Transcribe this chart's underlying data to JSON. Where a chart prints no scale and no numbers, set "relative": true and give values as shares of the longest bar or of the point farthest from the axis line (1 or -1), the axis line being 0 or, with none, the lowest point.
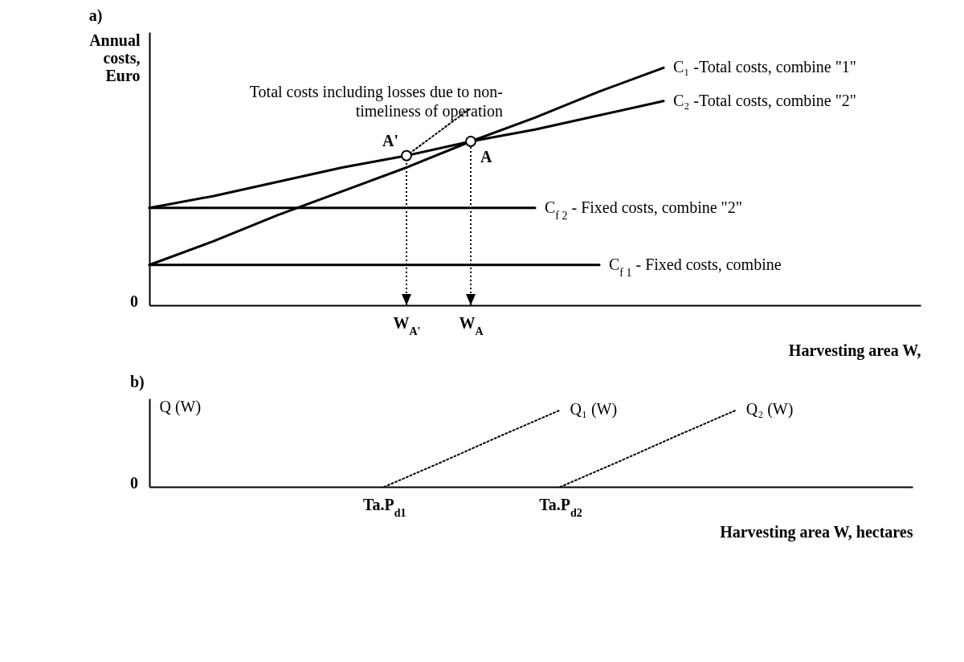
{
  "chart_data": [
    {
      "type": "line",
      "title": "a)",
      "ylabel": "Annual costs, Euro",
      "xlabel": "Harvesting area W,",
      "relative": true,
      "categories": [
        null,
        null,
        null,
        null,
        "W$_{A'}$",
        "W$_{A}$",
        null,
        null,
        null,
        null,
        null,
        null
      ],
      "series": [
        {
          "name": "C₁ -Total costs, combine \"1\"",
          "color": "#000000",
          "line_style": "solid",
          "values": [
            0.17,
            0.27,
            0.38,
            0.48,
            0.58,
            0.69,
            0.79,
            0.9,
            1.0,
            null,
            null,
            null
          ]
        },
        {
          "name": "C₂ -Total costs, combine \"2\"",
          "color": "#000000",
          "line_style": "solid",
          "values": [
            0.41,
            0.46,
            0.52,
            0.58,
            0.63,
            0.69,
            0.74,
            0.8,
            0.86,
            null,
            null,
            null
          ]
        },
        {
          "name": "C$_{f 2}$ - Fixed costs, combine \"2\"",
          "color": "#000000",
          "line_style": "solid",
          "values": [
            0.41,
            0.41,
            0.41,
            0.41,
            0.41,
            0.41,
            0.41,
            null,
            null,
            null,
            null,
            null
          ]
        },
        {
          "name": "C$_{f 1}$ - Fixed costs, combine",
          "color": "#000000",
          "line_style": "solid",
          "values": [
            0.17,
            0.17,
            0.17,
            0.17,
            0.17,
            0.17,
            0.17,
            0.17,
            null,
            null,
            null,
            null
          ]
        },
        {
          "name": "Total costs including losses due to non- timeliness of operation",
          "color": "#000000",
          "line_style": "dotted",
          "values": [
            null,
            null,
            null,
            null,
            0.63,
            0.83,
            null,
            null,
            null,
            null,
            null,
            null
          ]
        },
        {
          "type": "scatter",
          "color": "#000000",
          "marker": "circle",
          "values": [
            null,
            null,
            null,
            null,
            0.63,
            0.69,
            null,
            null,
            null,
            null,
            null,
            null
          ]
        }
      ],
      "annotations": [
        "0",
        {
          "text": "A'",
          "x": "W$_{A'}$",
          "y": 0.63
        },
        {
          "text": "A",
          "x": "W$_{A}$",
          "y": 0.69
        }
      ]
    },
    {
      "type": "line",
      "title": "b)",
      "ylabel": "Q (W)",
      "xlabel": "Harvesting area W, hectares",
      "relative": true,
      "categories": [
        null,
        null,
        null,
        null,
        "Ta.P$_{d1}$",
        null,
        null,
        "Ta.P$_{d2}$",
        null,
        null,
        null,
        null,
        null
      ],
      "series": [
        {
          "name": "Q₁ (W)",
          "color": "#000000",
          "line_style": "dotted",
          "values": [
            null,
            null,
            null,
            null,
            0,
            0.33,
            0.67,
            1.0,
            null,
            null,
            null,
            null,
            null
          ]
        },
        {
          "name": "Q₂ (W)",
          "color": "#000000",
          "line_style": "dotted",
          "values": [
            null,
            null,
            null,
            null,
            null,
            null,
            null,
            0,
            0.33,
            0.67,
            1.0,
            null,
            null
          ]
        }
      ],
      "annotations": [
        "0"
      ]
    }
  ]
}
